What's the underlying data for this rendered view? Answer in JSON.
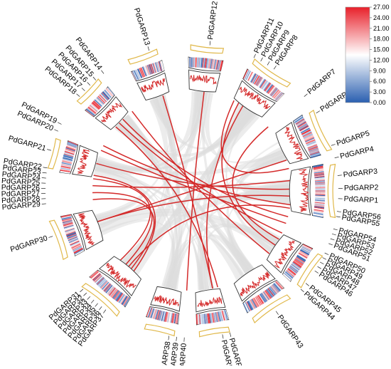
{
  "colors": {
    "link": "#d42a2a",
    "background_link": "#dcdcdc",
    "chromosome_box": "#e0b84a",
    "density_line": "#d42a2a",
    "scale_high": "#e8202a",
    "scale_mid": "#ffffff",
    "scale_low": "#2a5fb0"
  },
  "color_scale": {
    "ticks": [
      "27.00",
      "24.00",
      "21.00",
      "18.00",
      "15.00",
      "12.00",
      "9.00",
      "6.00",
      "3.00",
      "0.00"
    ]
  },
  "chromosomes": [
    {
      "mid": 180,
      "span": 23
    },
    {
      "mid": 155,
      "span": 19
    },
    {
      "mid": 124,
      "span": 19
    },
    {
      "mid": 96,
      "span": 15
    },
    {
      "mid": 70,
      "span": 14
    },
    {
      "mid": 44,
      "span": 14
    },
    {
      "mid": 15,
      "span": 14
    },
    {
      "mid": 340,
      "span": 18
    },
    {
      "mid": 310,
      "span": 20
    },
    {
      "mid": 283,
      "span": 14
    },
    {
      "mid": 261,
      "span": 14
    },
    {
      "mid": 236,
      "span": 19
    },
    {
      "mid": 214,
      "span": 17
    }
  ],
  "genes": [
    {
      "label": "PdGARP1",
      "angle": 183
    },
    {
      "label": "PdGARP2",
      "angle": 179
    },
    {
      "label": "PdGARP3",
      "angle": 174
    },
    {
      "label": "PdGARP4",
      "angle": 167
    },
    {
      "label": "PdGARP5",
      "angle": 162
    },
    {
      "label": "PdGARP6",
      "angle": 148
    },
    {
      "label": "PdGARP7",
      "angle": 140
    },
    {
      "label": "PdGARP8",
      "angle": 124
    },
    {
      "label": "PdGARP9",
      "angle": 121
    },
    {
      "label": "PdGARP10",
      "angle": 118
    },
    {
      "label": "PdGARP11",
      "angle": 115
    },
    {
      "label": "PdGARP12",
      "angle": 97
    },
    {
      "label": "PdGARP13",
      "angle": 73
    },
    {
      "label": "PdGARP14",
      "angle": 53
    },
    {
      "label": "PdGARP15",
      "angle": 49
    },
    {
      "label": "PdGARP16",
      "angle": 46
    },
    {
      "label": "PdGARP17",
      "angle": 43
    },
    {
      "label": "PdGARP18",
      "angle": 40
    },
    {
      "label": "PdGARP19",
      "angle": 27
    },
    {
      "label": "PdGARP20",
      "angle": 24
    },
    {
      "label": "PdGARP21",
      "angle": 16
    },
    {
      "label": "PdGARP22",
      "angle": 9
    },
    {
      "label": "PdGARP23",
      "angle": 7
    },
    {
      "label": "PdGARP24",
      "angle": 5
    },
    {
      "label": "PdGARP25",
      "angle": 3
    },
    {
      "label": "PdGARP26",
      "angle": 1
    },
    {
      "label": "PdGARP27",
      "angle": 359
    },
    {
      "label": "PdGARP28",
      "angle": 357
    },
    {
      "label": "PdGARP29",
      "angle": 355
    },
    {
      "label": "PdGARP30",
      "angle": 342
    },
    {
      "label": "PdGARP31",
      "angle": 318
    },
    {
      "label": "PdGARP32",
      "angle": 316
    },
    {
      "label": "PdGARP33",
      "angle": 314
    },
    {
      "label": "PdGARP34",
      "angle": 312
    },
    {
      "label": "PdGARP35",
      "angle": 310
    },
    {
      "label": "PdGARP36",
      "angle": 308
    },
    {
      "label": "PdGARP37",
      "angle": 306
    },
    {
      "label": "PdGARP38",
      "angle": 279
    },
    {
      "label": "PdGARP39",
      "angle": 276
    },
    {
      "label": "PdGARP40",
      "angle": 273
    },
    {
      "label": "PdGARP41",
      "angle": 258
    },
    {
      "label": "PdGARP42",
      "angle": 255
    },
    {
      "label": "PdGARP43",
      "angle": 235
    },
    {
      "label": "PdGARP44",
      "angle": 222
    },
    {
      "label": "PdGARP45",
      "angle": 219
    },
    {
      "label": "PdGARP46",
      "angle": 213
    },
    {
      "label": "PdGARP47",
      "angle": 211
    },
    {
      "label": "PdGARP48",
      "angle": 209
    },
    {
      "label": "PdGARP49",
      "angle": 207
    },
    {
      "label": "PdGARP50",
      "angle": 205
    },
    {
      "label": "PdGARP51",
      "angle": 201
    },
    {
      "label": "PdGARP52",
      "angle": 199
    },
    {
      "label": "PdGARP53",
      "angle": 197
    },
    {
      "label": "PdGARP54",
      "angle": 195
    },
    {
      "label": "PdGARP55",
      "angle": 190
    },
    {
      "label": "PdGARP56",
      "angle": 188
    }
  ],
  "links": [
    {
      "from": "PdGARP30",
      "to": "PdGARP1"
    },
    {
      "from": "PdGARP30",
      "to": "PdGARP5"
    },
    {
      "from": "PdGARP41",
      "to": "PdGARP13"
    },
    {
      "from": "PdGARP41",
      "to": "PdGARP9"
    },
    {
      "from": "PdGARP42",
      "to": "PdGARP18"
    },
    {
      "from": "PdGARP45",
      "to": "PdGARP14"
    },
    {
      "from": "PdGARP50",
      "to": "PdGARP17"
    },
    {
      "from": "PdGARP54",
      "to": "PdGARP16"
    },
    {
      "from": "PdGARP55",
      "to": "PdGARP35"
    },
    {
      "from": "PdGARP3",
      "to": "PdGARP25"
    },
    {
      "from": "PdGARP2",
      "to": "PdGARP21"
    },
    {
      "from": "PdGARP4",
      "to": "PdGARP11"
    },
    {
      "from": "PdGARP36",
      "to": "PdGARP29"
    },
    {
      "from": "PdGARP34",
      "to": "PdGARP27"
    },
    {
      "from": "PdGARP32",
      "to": "PdGARP23"
    },
    {
      "from": "PdGARP37",
      "to": "PdGARP22"
    },
    {
      "from": "PdGARP56",
      "to": "PdGARP19"
    },
    {
      "from": "PdGARP7",
      "to": "PdGARP48"
    },
    {
      "from": "PdGARP20",
      "to": "PdGARP52"
    },
    {
      "from": "PdGARP10",
      "to": "PdGARP46"
    },
    {
      "from": "PdGARP12",
      "to": "PdGARP40"
    }
  ]
}
